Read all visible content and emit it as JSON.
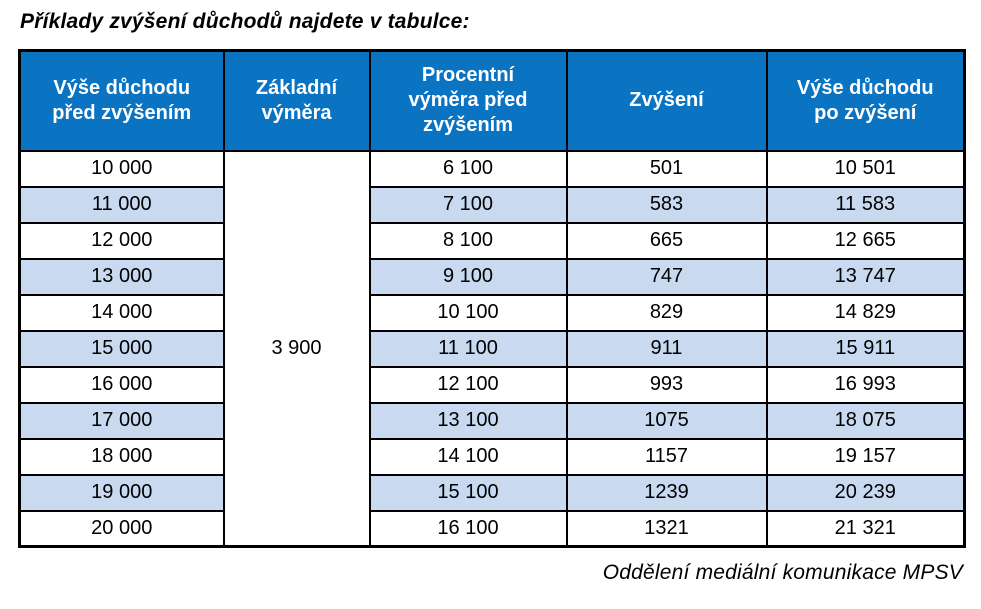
{
  "title": "Příklady zvýšení důchodů najdete v tabulce:",
  "footer": "Oddělení mediální komunikace MPSV",
  "colors": {
    "header_bg": "#0a73c2",
    "row_alt_bg": "#c8d9f0",
    "border": "#000000"
  },
  "table": {
    "columns": [
      {
        "label": "Výše důchodu před zvýšením",
        "lines": [
          "Výše důchodu",
          "před zvýšením"
        ]
      },
      {
        "label": "Základní výměra",
        "lines": [
          "Základní",
          "výměra"
        ]
      },
      {
        "label": "Procentní výměra před zvýšením",
        "lines": [
          "Procentní",
          "výměra před",
          "zvýšením"
        ]
      },
      {
        "label": "Zvýšení",
        "lines": [
          "Zvýšení"
        ]
      },
      {
        "label": "Výše důchodu po zvýšení",
        "lines": [
          "Výše důchodu",
          "po zvýšení"
        ]
      }
    ],
    "base_amount": "3 900",
    "rows": [
      {
        "before": "10 000",
        "percent_before": "6 100",
        "increase": "501",
        "after": "10 501"
      },
      {
        "before": "11 000",
        "percent_before": "7 100",
        "increase": "583",
        "after": "11 583"
      },
      {
        "before": "12 000",
        "percent_before": "8 100",
        "increase": "665",
        "after": "12 665"
      },
      {
        "before": "13 000",
        "percent_before": "9 100",
        "increase": "747",
        "after": "13 747"
      },
      {
        "before": "14 000",
        "percent_before": "10 100",
        "increase": "829",
        "after": "14 829"
      },
      {
        "before": "15 000",
        "percent_before": "11 100",
        "increase": "911",
        "after": "15 911"
      },
      {
        "before": "16 000",
        "percent_before": "12 100",
        "increase": "993",
        "after": "16 993"
      },
      {
        "before": "17 000",
        "percent_before": "13 100",
        "increase": "1075",
        "after": "18 075"
      },
      {
        "before": "18 000",
        "percent_before": "14 100",
        "increase": "1157",
        "after": "19 157"
      },
      {
        "before": "19 000",
        "percent_before": "15 100",
        "increase": "1239",
        "after": "20 239"
      },
      {
        "before": "20 000",
        "percent_before": "16 100",
        "increase": "1321",
        "after": "21 321"
      }
    ]
  }
}
